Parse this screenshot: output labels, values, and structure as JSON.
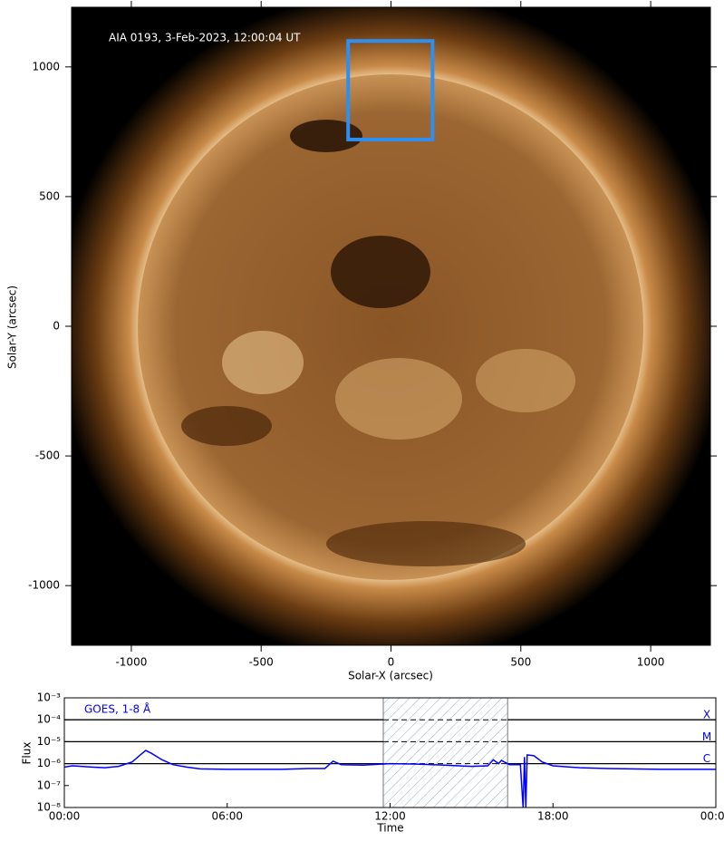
{
  "chart_data": [
    {
      "type": "image",
      "annotation": "AIA 0193, 3-Feb-2023, 12:00:04 UT",
      "xlabel": "Solar-X (arcsec)",
      "ylabel": "Solar-Y (arcsec)",
      "xlim": [
        -1230,
        1230
      ],
      "ylim": [
        -1230,
        1230
      ],
      "xticks": [
        -1000,
        -500,
        0,
        500,
        1000
      ],
      "yticks": [
        -1000,
        -500,
        0,
        500,
        1000
      ],
      "box": {
        "x": [
          -165,
          160
        ],
        "y": [
          720,
          1100
        ],
        "color": "#2e8ff0"
      }
    },
    {
      "type": "line",
      "annotation": "GOES, 1-8 Å",
      "xlabel": "Time",
      "ylabel": "Flux",
      "log_y": true,
      "xlim": [
        0,
        24
      ],
      "ylim": [
        1e-08,
        0.001
      ],
      "xticks": [
        {
          "value": 0,
          "label": "00:00"
        },
        {
          "value": 6,
          "label": "06:00"
        },
        {
          "value": 12,
          "label": "12:00"
        },
        {
          "value": 18,
          "label": "18:00"
        },
        {
          "value": 24,
          "label": "00:00"
        }
      ],
      "yticks": [
        {
          "value": 1e-08,
          "label": "10⁻⁸"
        },
        {
          "value": 1e-07,
          "label": "10⁻⁷"
        },
        {
          "value": 1e-06,
          "label": "10⁻⁶"
        },
        {
          "value": 1e-05,
          "label": "10⁻⁵"
        },
        {
          "value": 0.0001,
          "label": "10⁻⁴"
        },
        {
          "value": 0.001,
          "label": "10⁻³"
        }
      ],
      "levels": [
        {
          "value": 0.0001,
          "label": "X"
        },
        {
          "value": 1e-05,
          "label": "M"
        },
        {
          "value": 1e-06,
          "label": "C"
        }
      ],
      "shaded": [
        11.75,
        16.33
      ],
      "color": "#0000ff",
      "x": [
        0,
        0.3,
        1,
        1.5,
        2,
        2.5,
        2.8,
        3.0,
        3.2,
        3.6,
        4.0,
        4.5,
        5.0,
        6.0,
        7.0,
        8.0,
        9.0,
        9.6,
        9.9,
        10.2,
        11.0,
        12.0,
        13.0,
        14.0,
        15.0,
        15.6,
        15.8,
        16.0,
        16.1,
        16.4,
        16.8,
        16.9,
        16.95,
        17.0,
        17.05,
        17.3,
        17.6,
        18.0,
        19.0,
        20.0,
        22.0,
        24.0
      ],
      "values": [
        7e-07,
        8e-07,
        7e-07,
        6.5e-07,
        7.5e-07,
        1.2e-06,
        2.5e-06,
        4e-06,
        3e-06,
        1.5e-06,
        9e-07,
        7e-07,
        5.8e-07,
        5.5e-07,
        5.5e-07,
        5.5e-07,
        6e-07,
        6e-07,
        1.3e-06,
        9e-07,
        8.5e-07,
        1e-06,
        9.5e-07,
        8.5e-07,
        7.5e-07,
        8e-07,
        1.5e-06,
        1e-06,
        1.4e-06,
        9e-07,
        9e-07,
        1e-08,
        2e-06,
        1e-08,
        2.5e-06,
        2.3e-06,
        1.2e-06,
        8e-07,
        6.5e-07,
        6e-07,
        5.5e-07,
        5.5e-07
      ]
    }
  ]
}
